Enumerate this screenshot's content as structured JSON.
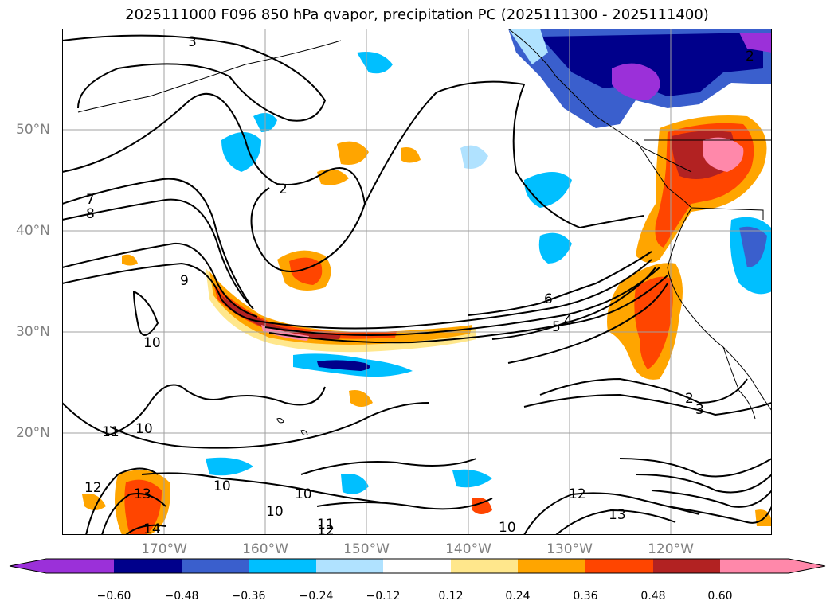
{
  "title": "2025111000 F096 850 hPa qvapor, precipitation PC (2025111300 - 2025111400)",
  "lat_labels": [
    "50°N",
    "40°N",
    "30°N",
    "20°N"
  ],
  "lon_labels": [
    "170°W",
    "160°W",
    "150°W",
    "140°W",
    "130°W",
    "120°W"
  ],
  "contour_labels": [
    "3",
    "2",
    "2",
    "7",
    "8",
    "9",
    "10",
    "10",
    "11",
    "12",
    "13",
    "14",
    "10",
    "10",
    "10",
    "11",
    "12",
    "10",
    "12",
    "13",
    "6",
    "5",
    "4",
    "2",
    "3"
  ],
  "colorbar": {
    "colors": [
      "#9b30d9",
      "#00008b",
      "#3a5fcd",
      "#00bfff",
      "#b0e2ff",
      "#ffffff",
      "#ffe78c",
      "#ffa500",
      "#ff4500",
      "#b22222",
      "#ff88aa"
    ],
    "ticks": [
      "−0.60",
      "−0.48",
      "−0.36",
      "−0.24",
      "−0.12",
      "0.12",
      "0.24",
      "0.36",
      "0.48",
      "0.60"
    ]
  }
}
